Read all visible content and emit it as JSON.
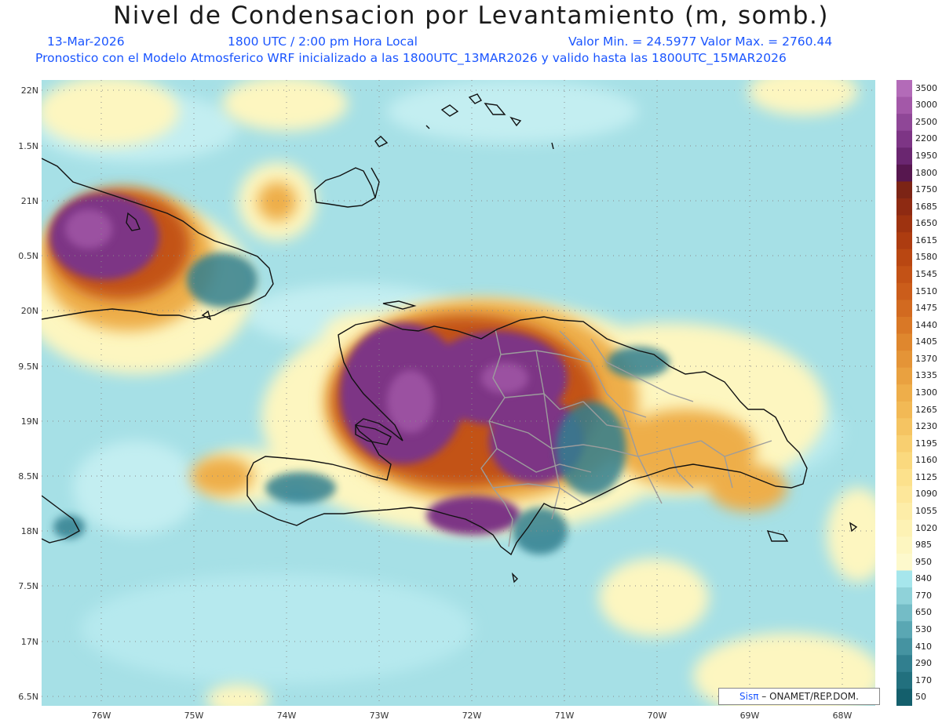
{
  "header": {
    "title": "Nivel de Condensacion por Levantamiento (m, somb.)",
    "date": "13-Mar-2026",
    "time": "1800 UTC / 2:00 pm Hora Local",
    "minmax": "Valor Min. = 24.5977  Valor Max. = 2760.44",
    "model_line": "Pronostico con el Modelo Atmosferico WRF inicializado a las 1800UTC_13MAR2026 y valido hasta las  1800UTC_15MAR2026"
  },
  "axes": {
    "lat_labels": [
      "22N",
      "1.5N",
      "21N",
      "0.5N",
      "20N",
      "9.5N",
      "19N",
      "8.5N",
      "18N",
      "7.5N",
      "17N",
      "6.5N"
    ],
    "lon_labels": [
      "76W",
      "75W",
      "74W",
      "73W",
      "72W",
      "71W",
      "70W",
      "69W",
      "68W"
    ]
  },
  "colorbar": {
    "labels": [
      "3500",
      "3000",
      "2500",
      "2200",
      "1950",
      "1800",
      "1750",
      "1685",
      "1650",
      "1615",
      "1580",
      "1545",
      "1510",
      "1475",
      "1440",
      "1405",
      "1370",
      "1335",
      "1300",
      "1265",
      "1230",
      "1195",
      "1160",
      "1125",
      "1090",
      "1055",
      "1020",
      "985",
      "950",
      "840",
      "770",
      "650",
      "530",
      "410",
      "290",
      "170",
      "50"
    ],
    "colors": [
      "#b36bb8",
      "#a358a8",
      "#8f4797",
      "#7d3585",
      "#6a2670",
      "#57174f",
      "#7c2415",
      "#8e2a12",
      "#9e3310",
      "#ad3c10",
      "#b94712",
      "#c35216",
      "#cb5d1b",
      "#d26a20",
      "#d97826",
      "#df872e",
      "#e49437",
      "#e9a140",
      "#eeae4a",
      "#f2b955",
      "#f5c462",
      "#f8cf70",
      "#fad97e",
      "#fce18c",
      "#fde79a",
      "#fdeda8",
      "#fdf2b4",
      "#fdf6c0",
      "#fdf9cc",
      "#a6e6ec",
      "#8fd2d9",
      "#74bcc6",
      "#5aa7b3",
      "#4593a1",
      "#317f8f",
      "#22707e",
      "#145f6c"
    ],
    "levels": [
      3500,
      3000,
      2500,
      2200,
      1950,
      1800,
      1750,
      1685,
      1650,
      1615,
      1580,
      1545,
      1510,
      1475,
      1440,
      1405,
      1370,
      1335,
      1300,
      1265,
      1230,
      1195,
      1160,
      1125,
      1090,
      1055,
      1020,
      985,
      950,
      840,
      770,
      650,
      530,
      410,
      290,
      170,
      50
    ],
    "min_value": 24.5977,
    "max_value": 2760.44
  },
  "credit": {
    "brand": "Sisπ",
    "org": "– ONAMET/REP.DOM."
  }
}
